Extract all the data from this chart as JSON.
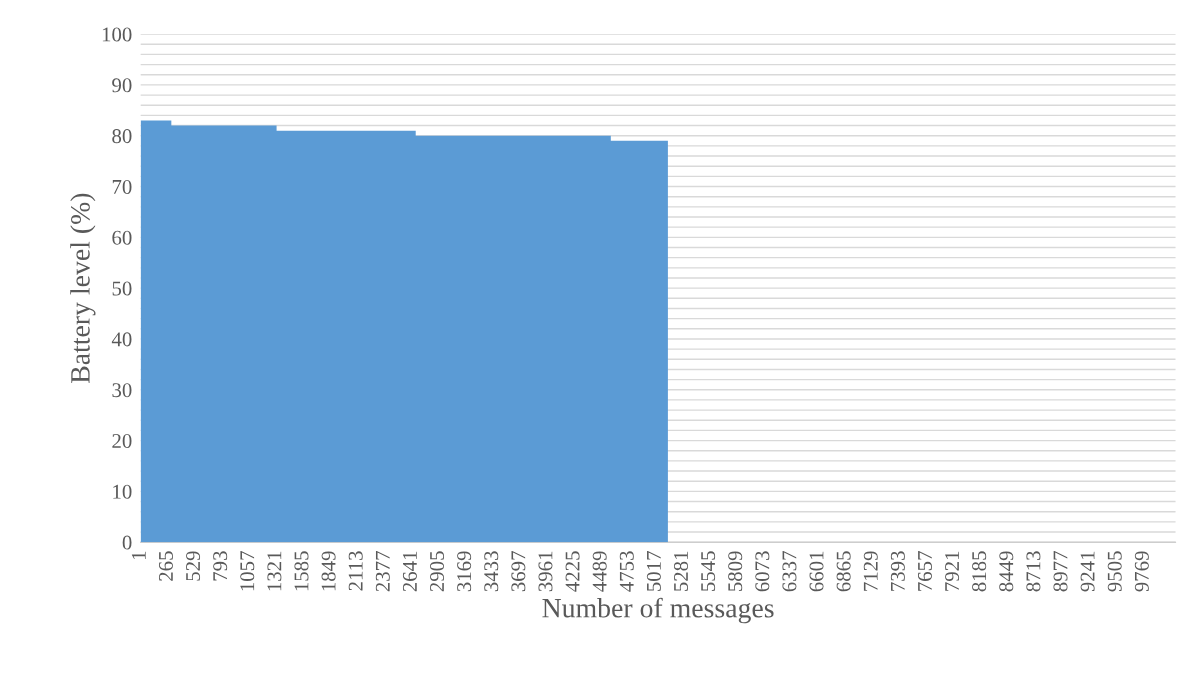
{
  "chart_data": {
    "type": "area",
    "xlabel": "Number of messages",
    "ylabel": "Battery level (%)",
    "x": [
      1,
      300,
      300,
      1325,
      1325,
      2680,
      2680,
      4580,
      4580,
      5136
    ],
    "series": [
      {
        "color": "#5b9bd5",
        "values": [
          83,
          83,
          82,
          82,
          81,
          81,
          80,
          80,
          79,
          79
        ]
      }
    ],
    "xlim": [
      1,
      10080
    ],
    "xticks": [
      1,
      265,
      529,
      793,
      1057,
      1321,
      1585,
      1849,
      2113,
      2377,
      2641,
      2905,
      3169,
      3433,
      3697,
      3961,
      4225,
      4489,
      4753,
      5017,
      5281,
      5545,
      5809,
      6073,
      6337,
      6601,
      6865,
      7129,
      7393,
      7657,
      7921,
      8185,
      8449,
      8713,
      8977,
      9241,
      9505,
      9769
    ],
    "ylim": [
      0,
      100
    ],
    "yticks": [
      0,
      {
        "value": 2,
        "label": null
      },
      {
        "value": 4,
        "label": null
      },
      {
        "value": 6,
        "label": null
      },
      {
        "value": 8,
        "label": null
      },
      10,
      {
        "value": 12,
        "label": null
      },
      {
        "value": 14,
        "label": null
      },
      {
        "value": 16,
        "label": null
      },
      {
        "value": 18,
        "label": null
      },
      20,
      {
        "value": 22,
        "label": null
      },
      {
        "value": 24,
        "label": null
      },
      {
        "value": 26,
        "label": null
      },
      {
        "value": 28,
        "label": null
      },
      30,
      {
        "value": 32,
        "label": null
      },
      {
        "value": 34,
        "label": null
      },
      {
        "value": 36,
        "label": null
      },
      {
        "value": 38,
        "label": null
      },
      40,
      {
        "value": 42,
        "label": null
      },
      {
        "value": 44,
        "label": null
      },
      {
        "value": 46,
        "label": null
      },
      {
        "value": 48,
        "label": null
      },
      50,
      {
        "value": 52,
        "label": null
      },
      {
        "value": 54,
        "label": null
      },
      {
        "value": 56,
        "label": null
      },
      {
        "value": 58,
        "label": null
      },
      60,
      {
        "value": 62,
        "label": null
      },
      {
        "value": 64,
        "label": null
      },
      {
        "value": 66,
        "label": null
      },
      {
        "value": 68,
        "label": null
      },
      70,
      {
        "value": 72,
        "label": null
      },
      {
        "value": 74,
        "label": null
      },
      {
        "value": 76,
        "label": null
      },
      {
        "value": 78,
        "label": null
      },
      80,
      {
        "value": 82,
        "label": null
      },
      {
        "value": 84,
        "label": null
      },
      {
        "value": 86,
        "label": null
      },
      {
        "value": 88,
        "label": null
      },
      90,
      {
        "value": 92,
        "label": null
      },
      {
        "value": 94,
        "label": null
      },
      {
        "value": 96,
        "label": null
      },
      {
        "value": 98,
        "label": null
      },
      100
    ],
    "grid": "y",
    "legend": false
  }
}
